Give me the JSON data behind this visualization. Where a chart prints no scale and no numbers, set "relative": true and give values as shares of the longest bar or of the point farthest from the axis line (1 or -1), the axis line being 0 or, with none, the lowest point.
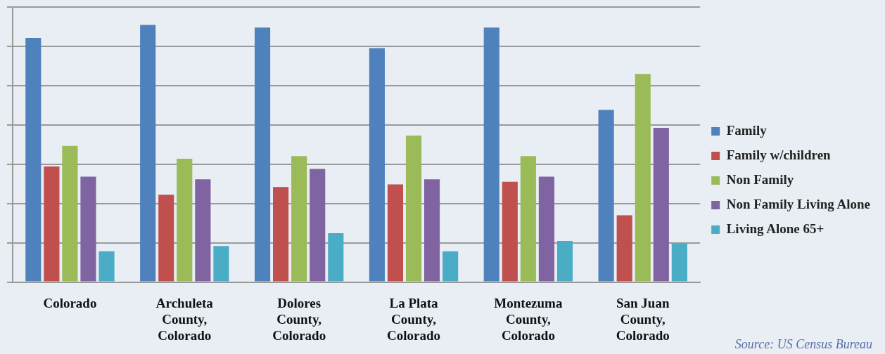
{
  "chart_data": {
    "type": "bar",
    "relative": true,
    "categories": [
      "Colorado",
      "Archuleta County, Colorado",
      "Dolores County, Colorado",
      "La Plata County, Colorado",
      "Montezuma County, Colorado",
      "San Juan County, Colorado"
    ],
    "series": [
      {
        "name": "Family",
        "color": "#4f81bd",
        "values": [
          0.95,
          1,
          0.99,
          0.91,
          0.99,
          0.67
        ]
      },
      {
        "name": "Family w/children",
        "color": "#c0504d",
        "values": [
          0.45,
          0.34,
          0.37,
          0.38,
          0.39,
          0.26
        ]
      },
      {
        "name": "Non Family",
        "color": "#9bbb59",
        "values": [
          0.53,
          0.48,
          0.49,
          0.57,
          0.49,
          0.81
        ]
      },
      {
        "name": "Non Family Living Alone",
        "color": "#8064a2",
        "values": [
          0.41,
          0.4,
          0.44,
          0.4,
          0.41,
          0.6
        ]
      },
      {
        "name": "Living Alone 65+",
        "color": "#4bacc6",
        "values": [
          0.12,
          0.14,
          0.19,
          0.12,
          0.16,
          0.15
        ]
      }
    ],
    "grid": "y",
    "legend": "right",
    "annotations": [
      "Source: US Census Bureau"
    ]
  }
}
